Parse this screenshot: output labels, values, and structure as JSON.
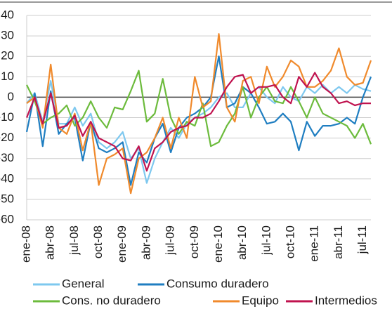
{
  "chart_data": {
    "type": "line",
    "categories": [
      "ene-08",
      null,
      null,
      "abr-08",
      null,
      null,
      "jul-08",
      null,
      null,
      "oct-08",
      null,
      null,
      "ene-09",
      null,
      null,
      "abr-09",
      null,
      null,
      "jul-09",
      null,
      null,
      "oct-09",
      null,
      null,
      "ene-10",
      null,
      null,
      "abr-10",
      null,
      null,
      "jul-10",
      null,
      null,
      "oct-10",
      null,
      null,
      "ene-11",
      null,
      null,
      "abr-11",
      null,
      null,
      "jul-11",
      null
    ],
    "series": [
      {
        "name": "General",
        "color": "#7ec8ef",
        "values": [
          -3,
          2,
          -12,
          8,
          -13,
          -13,
          -5,
          -14,
          -8,
          -22,
          -25,
          -22,
          -17,
          -30,
          -25,
          -42,
          -30,
          -22,
          -15,
          -20,
          -13,
          -10,
          -8,
          -5,
          0,
          2,
          -5,
          -5,
          2,
          5,
          0,
          -3,
          5,
          0,
          -2,
          5,
          2,
          6,
          2,
          5,
          2,
          6,
          4,
          3
        ]
      },
      {
        "name": "Consumo duradero",
        "color": "#1f7ec1",
        "values": [
          -17,
          2,
          -24,
          3,
          -18,
          -13,
          -10,
          -31,
          -12,
          -25,
          -27,
          -25,
          -22,
          -43,
          -27,
          -32,
          -20,
          -13,
          -27,
          -15,
          -10,
          -8,
          -5,
          0,
          20,
          -5,
          -3,
          5,
          2,
          -5,
          -13,
          -12,
          -8,
          -12,
          -26,
          -12,
          -19,
          -14,
          -14,
          -13,
          -10,
          -13,
          0,
          10
        ]
      },
      {
        "name": "Cons. no duradero",
        "color": "#6cbb3c",
        "values": [
          6,
          -2,
          -13,
          -10,
          -8,
          -4,
          -14,
          -10,
          -2,
          -10,
          -15,
          -5,
          -6,
          3,
          13,
          -12,
          -8,
          9,
          -10,
          -18,
          -12,
          -14,
          -3,
          -24,
          -22,
          -14,
          -8,
          5,
          -10,
          0,
          5,
          -2,
          -3,
          5,
          -2,
          -10,
          0,
          -8,
          -10,
          -12,
          -14,
          -20,
          -13,
          -23
        ]
      },
      {
        "name": "Equipo",
        "color": "#f08a2c",
        "values": [
          -3,
          0,
          -15,
          16,
          -15,
          -18,
          -8,
          -26,
          -12,
          -43,
          -30,
          -28,
          -25,
          -47,
          -30,
          -27,
          -20,
          -10,
          -25,
          -10,
          -20,
          10,
          -5,
          -2,
          31,
          -5,
          -12,
          8,
          10,
          -3,
          15,
          5,
          10,
          18,
          15,
          5,
          5,
          8,
          13,
          24,
          10,
          6,
          7,
          18
        ]
      },
      {
        "name": "Intermedios",
        "color": "#c0134f",
        "values": [
          -10,
          0,
          -13,
          2,
          -15,
          -14,
          -9,
          -19,
          -12,
          -20,
          -22,
          -24,
          -30,
          -31,
          -24,
          -36,
          -25,
          -22,
          -17,
          -15,
          -14,
          -10,
          -10,
          -8,
          -2,
          5,
          10,
          11,
          2,
          5,
          5,
          6,
          0,
          -3,
          10,
          5,
          12,
          5,
          2,
          -3,
          -2,
          -4,
          -3,
          -3
        ]
      }
    ],
    "ylim": [
      -60,
      40
    ],
    "yticks": [
      -60,
      -50,
      -40,
      -30,
      -20,
      -10,
      0,
      10,
      20,
      30,
      40
    ],
    "grid": true
  }
}
